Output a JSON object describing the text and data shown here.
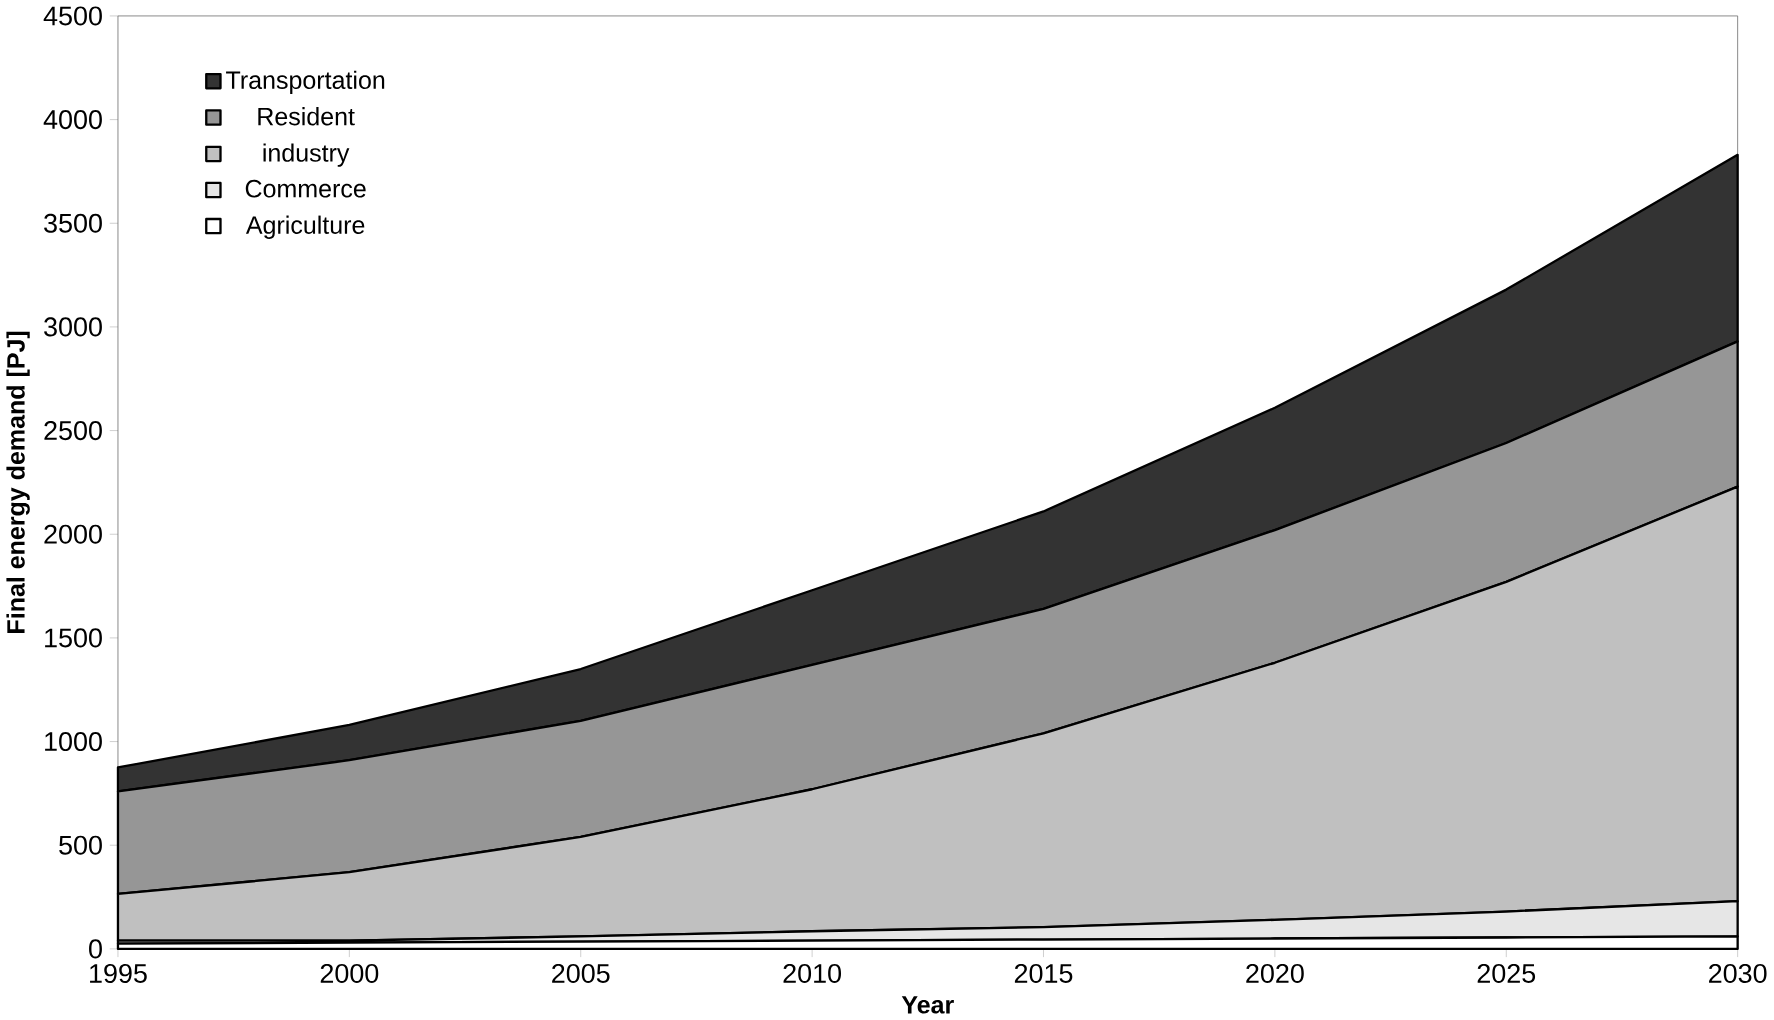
{
  "chart_data": {
    "type": "area",
    "stacked": true,
    "xlabel": "Year",
    "ylabel": "Final energy demand [PJ]",
    "x": [
      1995,
      2000,
      2005,
      2010,
      2015,
      2020,
      2025,
      2030
    ],
    "series": [
      {
        "name": "Agriculture",
        "color": "#ffffff",
        "values": [
          25,
          30,
          35,
          40,
          45,
          50,
          55,
          60
        ]
      },
      {
        "name": "Commerce",
        "color": "#e6e6e6",
        "values": [
          15,
          10,
          25,
          45,
          60,
          90,
          125,
          170
        ]
      },
      {
        "name": "industry",
        "color": "#c0c0c0",
        "values": [
          225,
          330,
          480,
          685,
          935,
          1240,
          1590,
          2000
        ]
      },
      {
        "name": "Resident",
        "color": "#969696",
        "values": [
          495,
          540,
          560,
          600,
          600,
          640,
          670,
          700
        ]
      },
      {
        "name": "Transportation",
        "color": "#333333",
        "values": [
          115,
          170,
          250,
          360,
          470,
          590,
          740,
          900
        ]
      }
    ],
    "xlim": [
      1995,
      2030
    ],
    "xticks": [
      1995,
      2000,
      2005,
      2010,
      2015,
      2020,
      2025,
      2030
    ],
    "ylim": [
      0,
      4500
    ],
    "yticks": [
      0,
      500,
      1000,
      1500,
      2000,
      2500,
      3000,
      3500,
      4000,
      4500
    ],
    "legend": "top left",
    "grid": false
  }
}
